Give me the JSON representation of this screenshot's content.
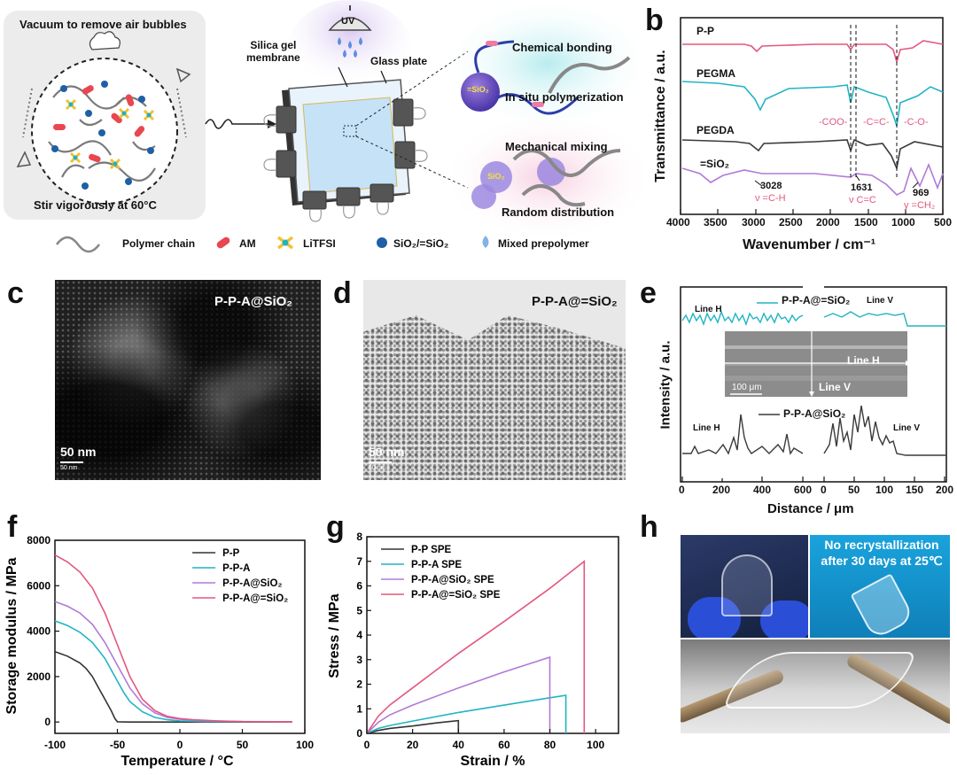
{
  "panels": {
    "a": {
      "letter": "a",
      "vacuum_label": "Vacuum to remove air bubbles",
      "stir_label": "Stir vigorously at 60°C",
      "uv_label": "UV",
      "silica_label_1": "Silica gel",
      "silica_label_2": "membrane",
      "glass_label": "Glass plate",
      "chem_bond": "Chemical bonding",
      "in_situ": "In situ polymerization",
      "mech_mix": "Mechanical mixing",
      "random_dist": "Random distribution",
      "sio2_bonded": "=SiO₂",
      "sio2": "SiO₂",
      "legend": [
        "Polymer chain",
        "AM",
        "LiTFSI",
        "SiO₂/=SiO₂",
        "Mixed prepolymer"
      ],
      "colors": {
        "polymer": "#888888",
        "am": "#e8474f",
        "litfsi": "#f2c12e",
        "sio2": "#1f5fa8",
        "prepolymer": "#7fb4e6"
      }
    },
    "b": {
      "letter": "b",
      "traces": [
        "P-P",
        "PEGMA",
        "PEGDA",
        "=SiO₂"
      ],
      "trace_colors": [
        "#e2587e",
        "#21b4c4",
        "#3a3a3a",
        "#b07ad8"
      ],
      "annotations": {
        "coo": "-COO-",
        "cc": "-C=C-",
        "co": "-C-O-",
        "n3028": "3028",
        "nu_ch": "ν =C-H",
        "n1631": "1631",
        "nu_cc": "ν C=C",
        "n969": "969",
        "gamma_ch2": "γ =CH₂"
      },
      "xlabel": "Wavenumber / cm⁻¹",
      "ylabel": "Transmittance / a.u.",
      "xticks": [
        "4000",
        "3500",
        "3000",
        "2500",
        "2000",
        "1500",
        "1000",
        "500"
      ]
    },
    "c": {
      "letter": "c",
      "label": "P-P-A@SiO₂",
      "scale": "50 nm",
      "scale_small": "50 nm"
    },
    "d": {
      "letter": "d",
      "label": "P-P-A@=SiO₂",
      "scale": "50 nm",
      "scale_small": "50 nm"
    },
    "e": {
      "letter": "e",
      "top_legend": "P-P-A@=SiO₂",
      "bottom_legend": "P-P-A@SiO₂",
      "line_h": "Line H",
      "line_v": "Line V",
      "inset_scale": "100 μm",
      "xlabel": "Distance / μm",
      "ylabel": "Intensity / a.u.",
      "xticks_left": [
        "0",
        "200",
        "400",
        "600"
      ],
      "xticks_right": [
        "0",
        "50",
        "100",
        "150",
        "200"
      ],
      "colors": {
        "top": "#21b4c4",
        "bottom": "#3a3a3a"
      }
    },
    "h": {
      "letter": "h",
      "caption_1": "No recrystallization",
      "caption_2": "after 30 days at 25℃"
    }
  },
  "chart_data": [
    {
      "panel": "f",
      "type": "line",
      "letter": "f",
      "xlabel": "Temperature / °C",
      "ylabel": "Storage modulus / MPa",
      "xlim": [
        -100,
        100
      ],
      "ylim": [
        -500,
        8000
      ],
      "xticks": [
        -100,
        -50,
        0,
        50,
        100
      ],
      "yticks": [
        0,
        2000,
        4000,
        6000,
        8000
      ],
      "legend_position": "top-right",
      "series": [
        {
          "name": "P-P",
          "color": "#333333",
          "x": [
            -100,
            -90,
            -80,
            -75,
            -70,
            -65,
            -60,
            -55,
            -52,
            -50,
            -40,
            0,
            50,
            90
          ],
          "y": [
            3100,
            2900,
            2600,
            2350,
            2000,
            1500,
            1000,
            500,
            150,
            10,
            0,
            0,
            0,
            0
          ]
        },
        {
          "name": "P-P-A",
          "color": "#21b4c4",
          "x": [
            -100,
            -90,
            -80,
            -70,
            -60,
            -50,
            -45,
            -40,
            -30,
            -20,
            -10,
            0,
            20,
            50,
            90
          ],
          "y": [
            4450,
            4250,
            3950,
            3500,
            2800,
            1800,
            1300,
            900,
            450,
            200,
            100,
            50,
            20,
            10,
            10
          ]
        },
        {
          "name": "P-P-A@SiO₂",
          "color": "#b07ad8",
          "x": [
            -100,
            -90,
            -80,
            -70,
            -60,
            -50,
            -40,
            -30,
            -20,
            -10,
            0,
            10,
            30,
            50,
            90
          ],
          "y": [
            5300,
            5100,
            4800,
            4300,
            3500,
            2500,
            1500,
            800,
            400,
            200,
            120,
            80,
            40,
            20,
            10
          ]
        },
        {
          "name": "P-P-A@=SiO₂",
          "color": "#e2587e",
          "x": [
            -100,
            -90,
            -80,
            -70,
            -60,
            -50,
            -40,
            -30,
            -20,
            -10,
            0,
            10,
            30,
            50,
            90
          ],
          "y": [
            7350,
            7050,
            6600,
            5900,
            4800,
            3400,
            2000,
            1000,
            500,
            250,
            150,
            100,
            50,
            20,
            10
          ]
        }
      ]
    },
    {
      "panel": "g",
      "type": "line",
      "letter": "g",
      "xlabel": "Strain / %",
      "ylabel": "Stress / MPa",
      "xlim": [
        0,
        110
      ],
      "ylim": [
        0,
        8
      ],
      "xticks": [
        0,
        20,
        40,
        60,
        80,
        100
      ],
      "yticks": [
        0,
        1,
        2,
        3,
        4,
        5,
        6,
        7,
        8
      ],
      "legend_position": "top-left",
      "series": [
        {
          "name": "P-P SPE",
          "color": "#333333",
          "x": [
            0,
            5,
            10,
            20,
            30,
            40,
            40
          ],
          "y": [
            0,
            0.12,
            0.2,
            0.3,
            0.42,
            0.52,
            0
          ]
        },
        {
          "name": "P-P-A SPE",
          "color": "#21b4c4",
          "x": [
            0,
            5,
            10,
            20,
            40,
            60,
            80,
            87,
            87
          ],
          "y": [
            0,
            0.2,
            0.32,
            0.5,
            0.85,
            1.15,
            1.45,
            1.55,
            0
          ]
        },
        {
          "name": "P-P-A@SiO₂ SPE",
          "color": "#b07ad8",
          "x": [
            0,
            5,
            10,
            20,
            40,
            60,
            80,
            80
          ],
          "y": [
            0,
            0.45,
            0.75,
            1.15,
            1.85,
            2.5,
            3.1,
            0
          ]
        },
        {
          "name": "P-P-A@=SiO₂ SPE",
          "color": "#e2587e",
          "x": [
            0,
            5,
            10,
            20,
            40,
            60,
            80,
            95,
            95
          ],
          "y": [
            0,
            0.7,
            1.15,
            1.85,
            3.25,
            4.55,
            5.9,
            7.0,
            0
          ]
        }
      ]
    }
  ]
}
